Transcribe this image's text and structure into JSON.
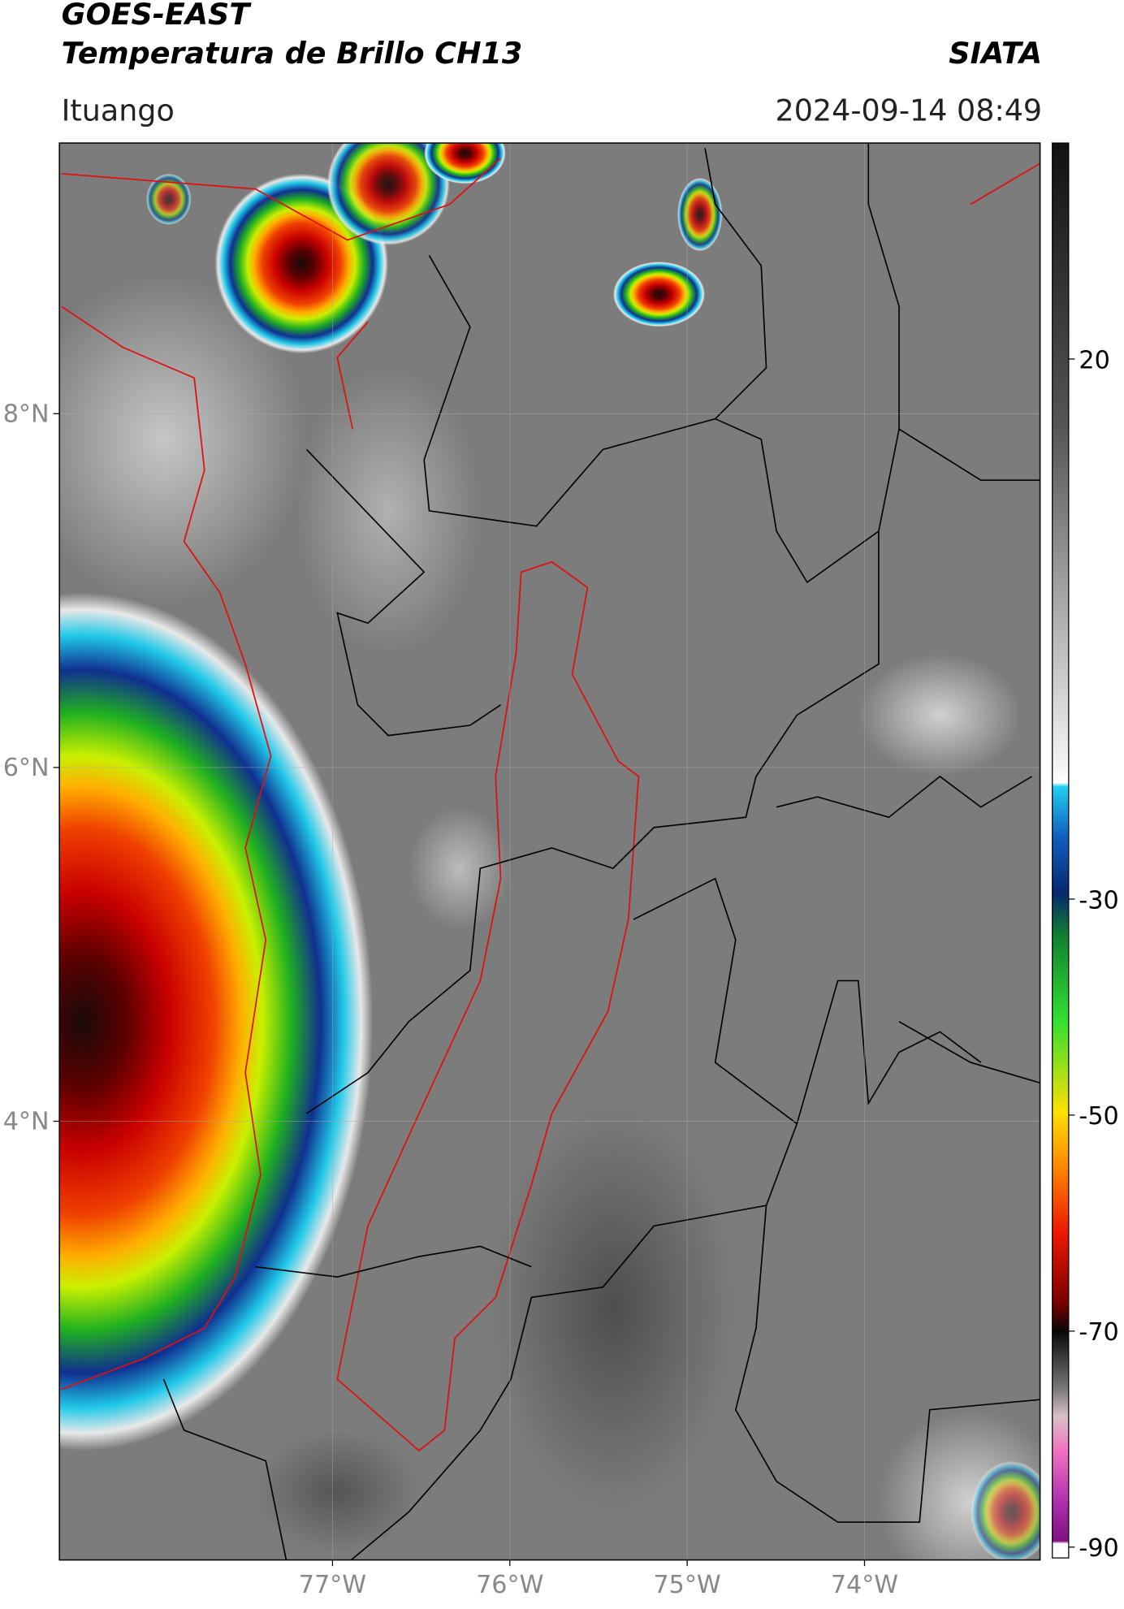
{
  "header": {
    "title": "GOES-EAST",
    "subtitle": "Temperatura de Brillo CH13",
    "brand": "SIATA",
    "region": "Ituango",
    "timestamp": "2024-09-14 08:49"
  },
  "map": {
    "lon_range": [
      -78.54,
      -73.01
    ],
    "lat_range": [
      1.52,
      9.53
    ],
    "lat_ticks": [
      {
        "value": 8,
        "label": "8°N"
      },
      {
        "value": 6,
        "label": "6°N"
      },
      {
        "value": 4,
        "label": "4°N"
      }
    ],
    "lon_ticks": [
      {
        "value": -77,
        "label": "77°W"
      },
      {
        "value": -76,
        "label": "76°W"
      },
      {
        "value": -75,
        "label": "75°W"
      },
      {
        "value": -74,
        "label": "74°W"
      }
    ],
    "grid": true
  },
  "colorbar": {
    "range": [
      -91,
      40
    ],
    "ticks": [
      20,
      -30,
      -50,
      -70,
      -90
    ]
  }
}
